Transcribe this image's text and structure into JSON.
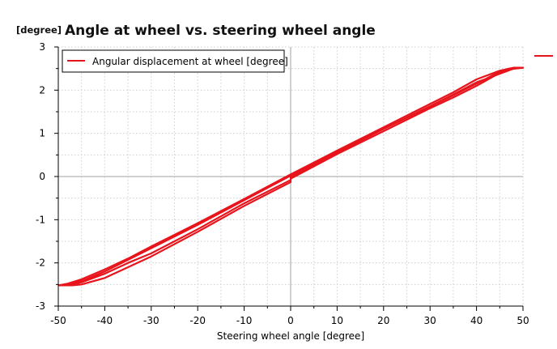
{
  "chart_data": {
    "type": "line",
    "title": "Angle at wheel vs. steering wheel angle",
    "y_unit_label": "[degree]",
    "xlabel": "Steering wheel angle [degree]",
    "ylabel": "",
    "xlim": [
      -50,
      50
    ],
    "ylim": [
      -3,
      3
    ],
    "x_ticks": [
      "-50",
      "-40",
      "-30",
      "-20",
      "-10",
      "0",
      "10",
      "20",
      "30",
      "40",
      "50"
    ],
    "y_ticks": [
      "3",
      "2",
      "1",
      "0",
      "-1",
      "-2",
      "-3"
    ],
    "grid": true,
    "legend_position": "top-left",
    "series": [
      {
        "name": "Angular displacement at wheel [degree]",
        "color": "#e8141c",
        "loops": [
          {
            "x": [
              -50,
              -47,
              -45,
              -40,
              -35,
              -30,
              -20,
              -10,
              0,
              0,
              10,
              20,
              30,
              35,
              40,
              45,
              47,
              50,
              48,
              45,
              40,
              35,
              30,
              20,
              10,
              0,
              -10,
              -20,
              -30,
              -35,
              -40,
              -45,
              -48,
              -50
            ],
            "y": [
              -2.52,
              -2.52,
              -2.5,
              -2.35,
              -2.1,
              -1.85,
              -1.28,
              -0.68,
              -0.13,
              -0.05,
              0.52,
              1.05,
              1.58,
              1.83,
              2.1,
              2.4,
              2.48,
              2.52,
              2.52,
              2.45,
              2.25,
              1.95,
              1.68,
              1.14,
              0.6,
              0.05,
              -0.52,
              -1.08,
              -1.62,
              -1.9,
              -2.15,
              -2.38,
              -2.48,
              -2.52
            ]
          },
          {
            "x": [
              -50,
              -47,
              -45,
              -40,
              -35,
              -30,
              -20,
              -10,
              0,
              0,
              10,
              20,
              30,
              35,
              40,
              45,
              47,
              50,
              48,
              45,
              40,
              35,
              30,
              20,
              10,
              0,
              -10,
              -20,
              -30,
              -35,
              -40,
              -45,
              -48,
              -50
            ],
            "y": [
              -2.52,
              -2.5,
              -2.45,
              -2.25,
              -2.0,
              -1.78,
              -1.22,
              -0.62,
              -0.08,
              -0.02,
              0.55,
              1.1,
              1.62,
              1.88,
              2.15,
              2.43,
              2.5,
              2.52,
              2.5,
              2.38,
              2.18,
              1.9,
              1.63,
              1.1,
              0.57,
              0.02,
              -0.55,
              -1.12,
              -1.66,
              -1.93,
              -2.2,
              -2.42,
              -2.5,
              -2.52
            ]
          }
        ]
      }
    ],
    "extra_legend_marker_color": "#e8141c"
  }
}
